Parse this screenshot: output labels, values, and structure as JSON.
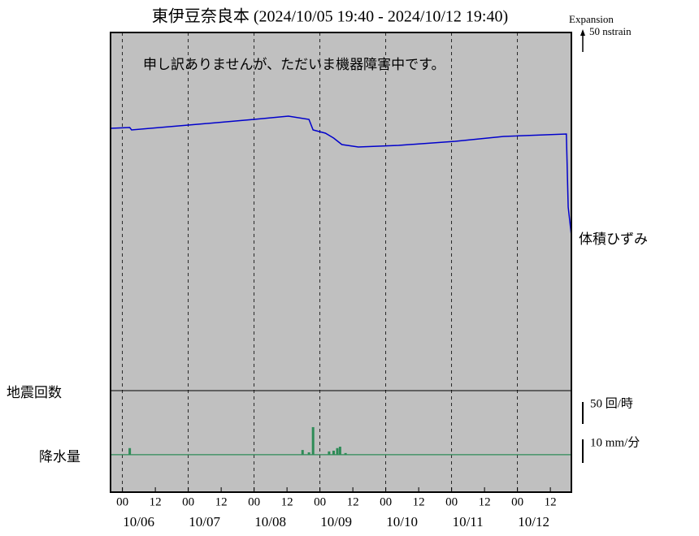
{
  "chart_data": {
    "type": "line",
    "title": "東伊豆奈良本 (2024/10/05 19:40 - 2024/10/12 19:40)",
    "notice": "申し訳ありませんが、ただいま機器障害中です。",
    "xlim": [
      "10/05 19:40",
      "10/12 19:40"
    ],
    "xticks": [
      {
        "value": "10/06 00:00",
        "label": "00"
      },
      {
        "value": "10/06 12:00",
        "label": "12"
      },
      {
        "value": "10/07 00:00",
        "label": "00"
      },
      {
        "value": "10/07 12:00",
        "label": "12"
      },
      {
        "value": "10/08 00:00",
        "label": "00"
      },
      {
        "value": "10/08 12:00",
        "label": "12"
      },
      {
        "value": "10/09 00:00",
        "label": "00"
      },
      {
        "value": "10/09 12:00",
        "label": "12"
      },
      {
        "value": "10/10 00:00",
        "label": "00"
      },
      {
        "value": "10/10 12:00",
        "label": "12"
      },
      {
        "value": "10/11 00:00",
        "label": "00"
      },
      {
        "value": "10/11 12:00",
        "label": "12"
      },
      {
        "value": "10/12 00:00",
        "label": "00"
      },
      {
        "value": "10/12 12:00",
        "label": "12"
      }
    ],
    "date_labels": [
      {
        "value": "10/06 00:00",
        "label": "10/06"
      },
      {
        "value": "10/07 00:00",
        "label": "10/07"
      },
      {
        "value": "10/08 00:00",
        "label": "10/08"
      },
      {
        "value": "10/09 00:00",
        "label": "10/09"
      },
      {
        "value": "10/10 00:00",
        "label": "10/10"
      },
      {
        "value": "10/11 00:00",
        "label": "10/11"
      },
      {
        "value": "10/12 00:00",
        "label": "10/12"
      }
    ],
    "strain": {
      "name": "体積ひずみ",
      "color": "#0000cc",
      "scale_top": "Expansion",
      "scale_label": "50 nstrain",
      "ylim": [
        0,
        882
      ],
      "x": [
        "10/05 19:40",
        "10/06 02:40",
        "10/06 03:20",
        "10/07 00:00",
        "10/08 00:00",
        "10/08 12:30",
        "10/08 20:00",
        "10/08 21:30",
        "10/09 02:00",
        "10/09 05:00",
        "10/09 08:00",
        "10/09 14:00",
        "10/10 04:40",
        "10/11 01:20",
        "10/11 19:00",
        "10/12 17:50",
        "10/12 18:30",
        "10/12 19:40"
      ],
      "values": [
        646,
        648,
        642,
        654,
        668,
        676,
        668,
        642,
        634,
        622,
        606,
        600,
        604,
        614,
        626,
        632,
        452,
        382
      ]
    },
    "quake": {
      "name": "地震回数",
      "scale_label": "50 回/時"
    },
    "rain": {
      "name": "降水量",
      "color": "#2e8b57",
      "scale_label": "10 mm/分",
      "ylim": [
        -15.9,
        27.2
      ],
      "x": [
        "10/06 02:40",
        "10/08 17:40",
        "10/08 20:00",
        "10/08 21:30",
        "10/09 03:20",
        "10/09 05:00",
        "10/09 06:20",
        "10/09 07:20",
        "10/09 09:20"
      ],
      "values": [
        2.8,
        2,
        1,
        11.7,
        1.4,
        1.7,
        2.8,
        3.4,
        0.7
      ]
    }
  }
}
